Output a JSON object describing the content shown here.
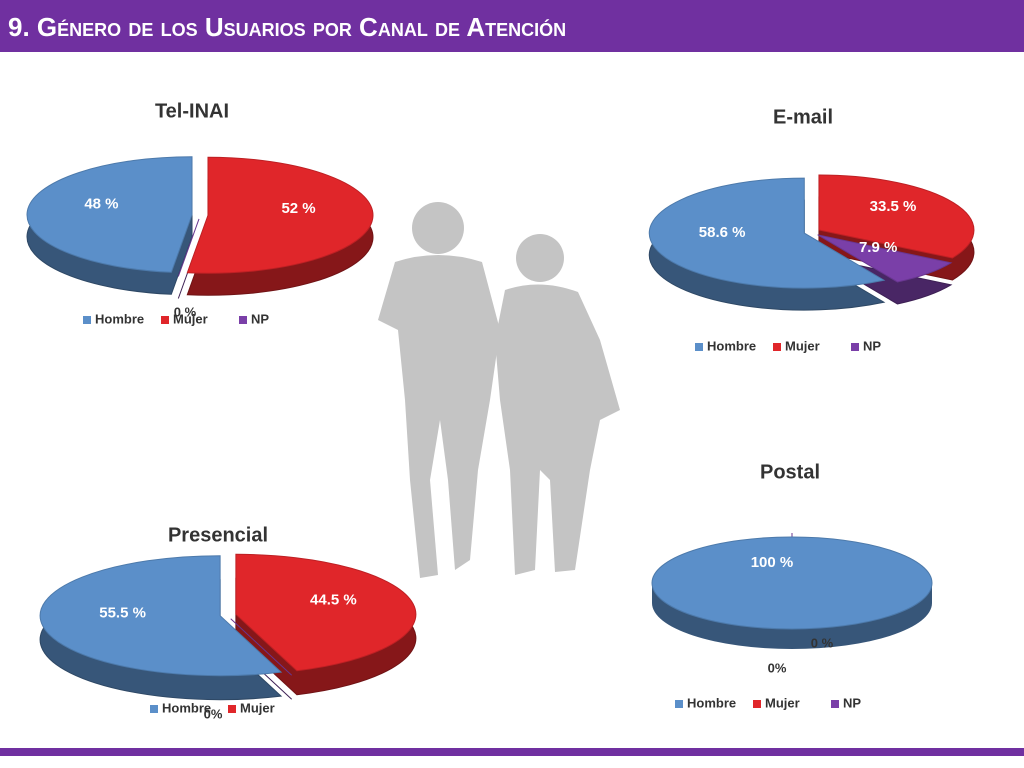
{
  "slide_title": "9. Género de los Usuarios por Canal de Atención",
  "chart_data": [
    {
      "type": "pie",
      "title": "Tel-INAI",
      "categories": [
        "Hombre",
        "Mujer",
        "NP"
      ],
      "values": [
        48,
        52,
        0
      ],
      "value_labels": [
        "48 %",
        "52 %",
        "0 %"
      ],
      "colors": [
        "#5b8fc9",
        "#e0262a",
        "#7a3fa8"
      ]
    },
    {
      "type": "pie",
      "title": "E-mail",
      "categories": [
        "Hombre",
        "Mujer",
        "NP"
      ],
      "values": [
        58.6,
        33.5,
        7.9
      ],
      "value_labels": [
        "58.6 %",
        "33.5 %",
        "7.9 %"
      ],
      "colors": [
        "#5b8fc9",
        "#e0262a",
        "#7a3fa8"
      ]
    },
    {
      "type": "pie",
      "title": "Presencial",
      "categories": [
        "Hombre",
        "Mujer",
        null
      ],
      "values": [
        55.5,
        44.5,
        0
      ],
      "value_labels": [
        "55.5 %",
        "44.5 %",
        "0%"
      ],
      "colors": [
        "#5b8fc9",
        "#e0262a",
        "#7a3fa8"
      ]
    },
    {
      "type": "pie",
      "title": "Postal",
      "categories": [
        "Hombre",
        "Mujer",
        "NP"
      ],
      "values": [
        100,
        0,
        0
      ],
      "value_labels": [
        "100 %",
        "0 %",
        "0%"
      ],
      "colors": [
        "#5b8fc9",
        "#e0262a",
        "#7a3fa8"
      ]
    }
  ]
}
